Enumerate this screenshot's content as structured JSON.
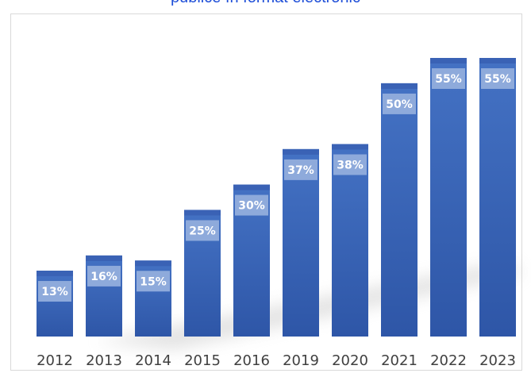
{
  "chart_data": {
    "type": "bar",
    "title": "publice în format electronic",
    "categories": [
      "2012",
      "2013",
      "2014",
      "2015",
      "2016",
      "2019",
      "2020",
      "2021",
      "2022",
      "2023"
    ],
    "values": [
      13,
      16,
      15,
      25,
      30,
      37,
      38,
      50,
      55,
      55
    ],
    "data_labels": [
      "13%",
      "16%",
      "15%",
      "25%",
      "30%",
      "37%",
      "38%",
      "50%",
      "55%",
      "55%"
    ],
    "ylim": [
      0,
      60
    ],
    "grid": false,
    "legend": "none",
    "colors": {
      "bar_top": "#4472c4",
      "bar_bottom": "#2e56a7",
      "bar_cap": "#3a62b5",
      "label_box": "#8eaadb",
      "title": "#1f4fd8"
    }
  }
}
